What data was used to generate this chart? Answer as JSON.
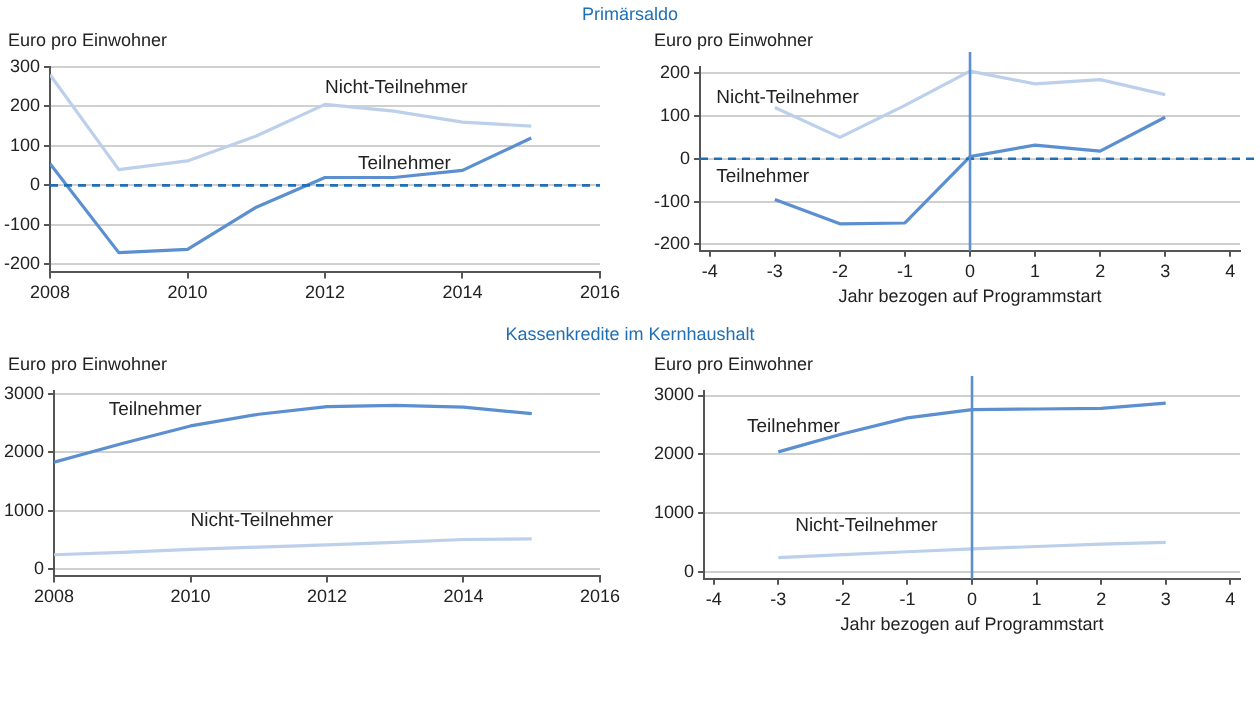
{
  "chart_data": [
    {
      "type": "line",
      "title": "Primärsaldo",
      "ylabel": "Euro pro Einwohner",
      "x": [
        2008,
        2009,
        2010,
        2011,
        2012,
        2013,
        2014,
        2015
      ],
      "xlim": [
        2008,
        2016
      ],
      "xticks": [
        2008,
        2010,
        2012,
        2014,
        2016
      ],
      "ylim": [
        -220,
        300
      ],
      "yticks": [
        -200,
        -100,
        0,
        100,
        200,
        300
      ],
      "grid": "y",
      "legend": false,
      "marker": "none",
      "series": [
        {
          "name": "Nicht-Teilnehmer",
          "color": "#bcd0ec",
          "values": [
            280,
            40,
            62,
            125,
            205,
            188,
            160,
            150
          ]
        },
        {
          "name": "Teilnehmer",
          "color": "#5b8fd0",
          "values": [
            55,
            -170,
            -162,
            -55,
            20,
            20,
            38,
            120
          ]
        }
      ],
      "ref_lines": [
        {
          "axis": "y",
          "value": 0,
          "color": "#1f6fb5",
          "line_style": "dashed"
        }
      ]
    },
    {
      "type": "line",
      "ylabel": "Euro pro Einwohner",
      "xlabel": "Jahr bezogen auf Programmstart",
      "x": [
        -3,
        -2,
        -1,
        0,
        1,
        2,
        3
      ],
      "xlim": [
        -4.15,
        4.15
      ],
      "xticks": [
        -4,
        -3,
        -2,
        -1,
        0,
        1,
        2,
        3,
        4
      ],
      "ylim": [
        -215,
        215
      ],
      "yticks": [
        -200,
        -100,
        0,
        100,
        200
      ],
      "grid": "y",
      "legend": false,
      "marker": "none",
      "series": [
        {
          "name": "Nicht-Teilnehmer",
          "color": "#bcd0ec",
          "values": [
            120,
            50,
            125,
            205,
            175,
            185,
            150
          ]
        },
        {
          "name": "Teilnehmer",
          "color": "#5b8fd0",
          "values": [
            -95,
            -152,
            -150,
            5,
            32,
            18,
            97
          ]
        }
      ],
      "ref_lines": [
        {
          "axis": "y",
          "value": 0,
          "color": "#1f6fb5",
          "line_style": "dashed"
        },
        {
          "axis": "x",
          "value": 0,
          "color": "#5b8fd0",
          "line_style": "solid"
        }
      ]
    },
    {
      "type": "line",
      "title": "Kassenkredite im Kernhaushalt",
      "ylabel": "Euro pro Einwohner",
      "x": [
        2008,
        2009,
        2010,
        2011,
        2012,
        2013,
        2014,
        2015
      ],
      "xlim": [
        2008,
        2016
      ],
      "xticks": [
        2008,
        2010,
        2012,
        2014,
        2016
      ],
      "ylim": [
        -120,
        3050
      ],
      "yticks": [
        0,
        1000,
        2000,
        3000
      ],
      "grid": "y",
      "legend": false,
      "marker": "none",
      "series": [
        {
          "name": "Teilnehmer",
          "color": "#5b8fd0",
          "values": [
            1830,
            2150,
            2450,
            2650,
            2780,
            2800,
            2770,
            2660
          ]
        },
        {
          "name": "Nicht-Teilnehmer",
          "color": "#bcd0ec",
          "values": [
            250,
            290,
            340,
            380,
            420,
            460,
            510,
            520
          ]
        }
      ]
    },
    {
      "type": "line",
      "ylabel": "Euro pro Einwohner",
      "xlabel": "Jahr bezogen auf Programmstart",
      "x": [
        -3,
        -2,
        -1,
        0,
        1,
        2,
        3
      ],
      "xlim": [
        -4.15,
        4.15
      ],
      "xticks": [
        -4,
        -3,
        -2,
        -1,
        0,
        1,
        2,
        3,
        4
      ],
      "ylim": [
        -120,
        3080
      ],
      "yticks": [
        0,
        1000,
        2000,
        3000
      ],
      "grid": "y",
      "legend": false,
      "marker": "none",
      "series": [
        {
          "name": "Teilnehmer",
          "color": "#5b8fd0",
          "values": [
            2040,
            2350,
            2620,
            2760,
            2770,
            2780,
            2870
          ]
        },
        {
          "name": "Nicht-Teilnehmer",
          "color": "#bcd0ec",
          "values": [
            240,
            290,
            340,
            390,
            430,
            470,
            500
          ]
        }
      ],
      "ref_lines": [
        {
          "axis": "x",
          "value": 0,
          "color": "#5b8fd0",
          "line_style": "solid"
        }
      ]
    }
  ]
}
